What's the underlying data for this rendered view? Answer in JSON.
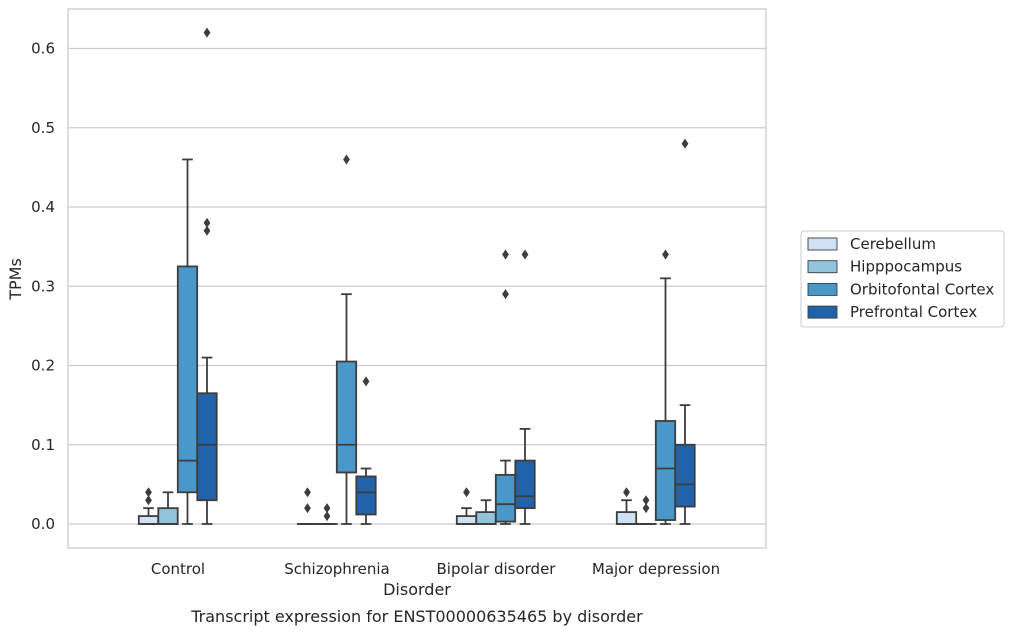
{
  "chart_data": {
    "type": "box",
    "caption": "Transcript expression for ENST00000635465 by disorder",
    "xlabel": "Disorder",
    "ylabel": "TPMs",
    "ylim": [
      -0.03,
      0.655
    ],
    "yticks": [
      "0.0",
      "0.1",
      "0.2",
      "0.3",
      "0.4",
      "0.5",
      "0.6"
    ],
    "grid": true,
    "legend_position": "right",
    "categories": [
      "Control",
      "Schizophrenia",
      "Bipolar disorder",
      "Major depression"
    ],
    "series": [
      {
        "name": "Cerebellum",
        "color": "#cfe1f2",
        "boxes": [
          {
            "q1": 0,
            "median": 0,
            "q3": 0.01,
            "wlo": 0,
            "whi": 0.02,
            "outliers": [
              0.03,
              0.04
            ]
          },
          {
            "q1": 0,
            "median": 0,
            "q3": 0,
            "wlo": 0,
            "whi": 0,
            "outliers": [
              0.02,
              0.04
            ]
          },
          {
            "q1": 0,
            "median": 0,
            "q3": 0.01,
            "wlo": 0,
            "whi": 0.02,
            "outliers": [
              0.04
            ]
          },
          {
            "q1": 0,
            "median": 0,
            "q3": 0.015,
            "wlo": 0,
            "whi": 0.03,
            "outliers": [
              0.04
            ]
          }
        ]
      },
      {
        "name": "Hipppocampus",
        "color": "#93c4de",
        "boxes": [
          {
            "q1": 0,
            "median": 0,
            "q3": 0.02,
            "wlo": 0,
            "whi": 0.04,
            "outliers": []
          },
          {
            "q1": 0,
            "median": 0,
            "q3": 0,
            "wlo": 0,
            "whi": 0,
            "outliers": [
              0.01,
              0.02
            ]
          },
          {
            "q1": 0,
            "median": 0,
            "q3": 0.015,
            "wlo": 0,
            "whi": 0.03,
            "outliers": []
          },
          {
            "q1": 0,
            "median": 0,
            "q3": 0,
            "wlo": 0,
            "whi": 0,
            "outliers": [
              0.02,
              0.03
            ]
          }
        ]
      },
      {
        "name": "Orbitofontal Cortex",
        "color": "#4a98c9",
        "boxes": [
          {
            "q1": 0.04,
            "median": 0.08,
            "q3": 0.325,
            "wlo": 0,
            "whi": 0.46,
            "outliers": []
          },
          {
            "q1": 0.065,
            "median": 0.1,
            "q3": 0.205,
            "wlo": 0,
            "whi": 0.29,
            "outliers": [
              0.46
            ]
          },
          {
            "q1": 0.003,
            "median": 0.025,
            "q3": 0.062,
            "wlo": 0,
            "whi": 0.08,
            "outliers": [
              0.29,
              0.34
            ]
          },
          {
            "q1": 0.005,
            "median": 0.07,
            "q3": 0.13,
            "wlo": 0,
            "whi": 0.31,
            "outliers": [
              0.34
            ]
          }
        ]
      },
      {
        "name": "Prefrontal Cortex",
        "color": "#2163aa",
        "boxes": [
          {
            "q1": 0.03,
            "median": 0.1,
            "q3": 0.165,
            "wlo": 0,
            "whi": 0.21,
            "outliers": [
              0.37,
              0.38,
              0.62
            ]
          },
          {
            "q1": 0.012,
            "median": 0.04,
            "q3": 0.06,
            "wlo": 0,
            "whi": 0.07,
            "outliers": [
              0.18
            ]
          },
          {
            "q1": 0.02,
            "median": 0.035,
            "q3": 0.08,
            "wlo": 0,
            "whi": 0.12,
            "outliers": [
              0.34
            ]
          },
          {
            "q1": 0.022,
            "median": 0.05,
            "q3": 0.1,
            "wlo": 0,
            "whi": 0.15,
            "outliers": [
              0.48
            ]
          }
        ]
      }
    ]
  },
  "colors": {
    "grid": "#cccccc",
    "frame": "#cccccc",
    "box_edge": "#3d3d3d",
    "text": "#262626"
  }
}
